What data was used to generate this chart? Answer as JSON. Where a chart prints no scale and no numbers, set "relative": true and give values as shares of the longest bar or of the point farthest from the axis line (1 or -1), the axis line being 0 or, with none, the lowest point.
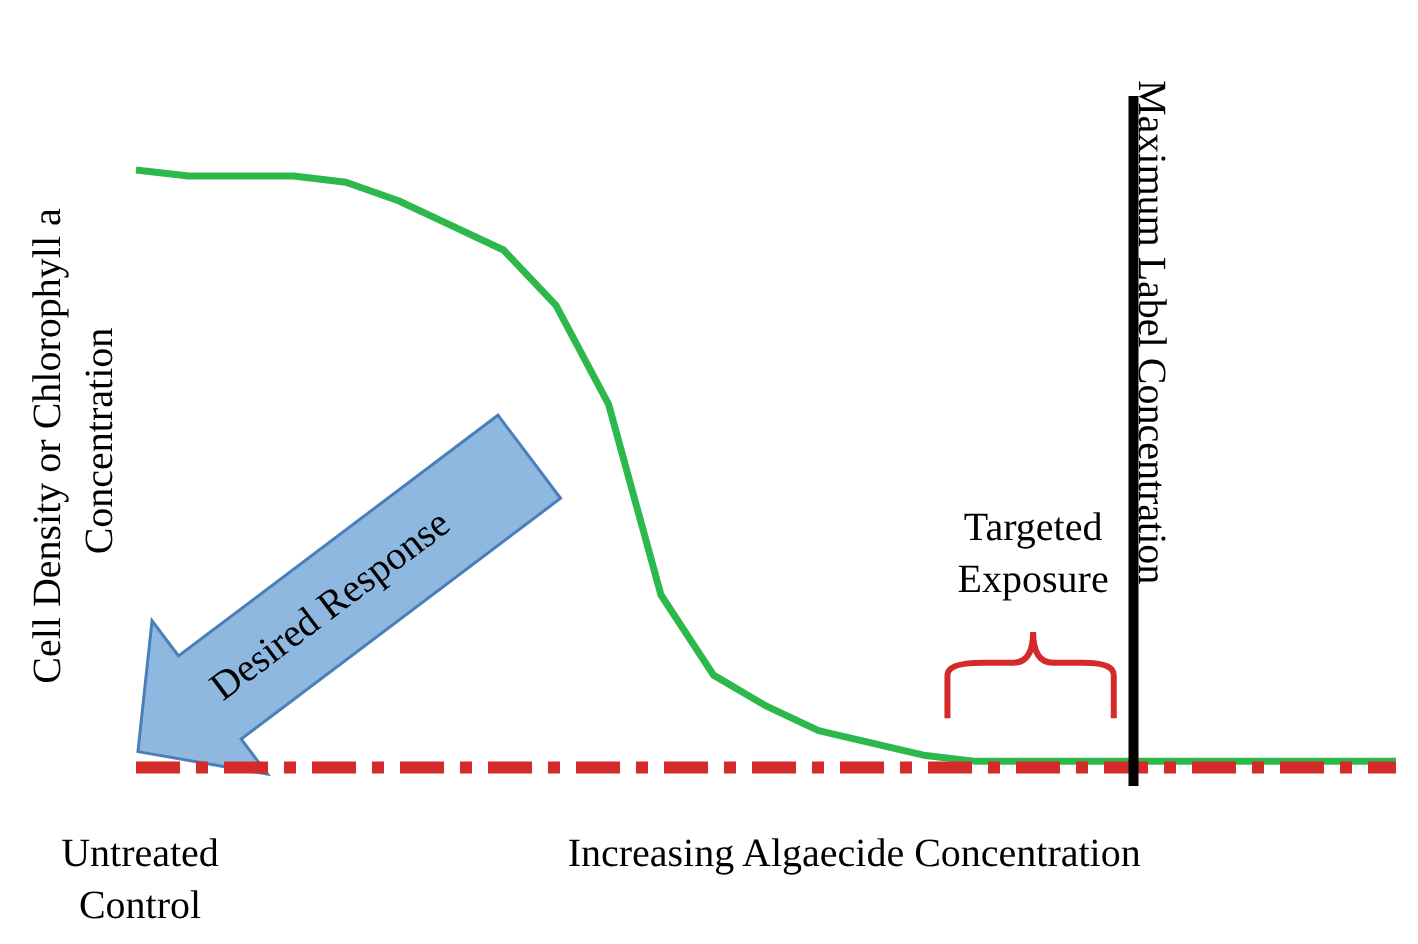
{
  "chart_data": {
    "type": "line",
    "relative": true,
    "xlabel": "Increasing Algaecide Concentration",
    "ylabel": "Cell Density or Chlorophyll a Concentration",
    "categories": [
      null,
      null,
      null,
      null,
      null,
      null,
      null,
      null,
      null,
      null,
      null,
      null,
      null,
      null,
      null,
      null,
      null,
      null,
      null,
      null,
      null,
      null,
      null,
      null,
      null
    ],
    "series": [
      {
        "color": "#2cb84a",
        "values": [
          1,
          0.99,
          0.99,
          0.99,
          0.98,
          0.95,
          0.91,
          0.87,
          0.78,
          0.62,
          0.31,
          0.18,
          0.13,
          0.09,
          0.07,
          0.05,
          0.04,
          0.04,
          0.04,
          0.04,
          0.04,
          0.04,
          0.04,
          0.04,
          0.04
        ]
      },
      {
        "color": "#d42a2a",
        "line_style": "dashed",
        "values": [
          0.03,
          0.03,
          0.03,
          0.03,
          0.03,
          0.03,
          0.03,
          0.03,
          0.03,
          0.03,
          0.03,
          0.03,
          0.03,
          0.03,
          0.03,
          0.03,
          0.03,
          0.03,
          0.03,
          0.03,
          0.03,
          0.03,
          0.03,
          0.03,
          0.03
        ]
      }
    ],
    "marker": "none",
    "line_style": "solid",
    "annotations": [
      "Desired Response",
      "Targeted Exposure",
      "Untreated Control",
      "Maximum Label Concentration"
    ]
  }
}
